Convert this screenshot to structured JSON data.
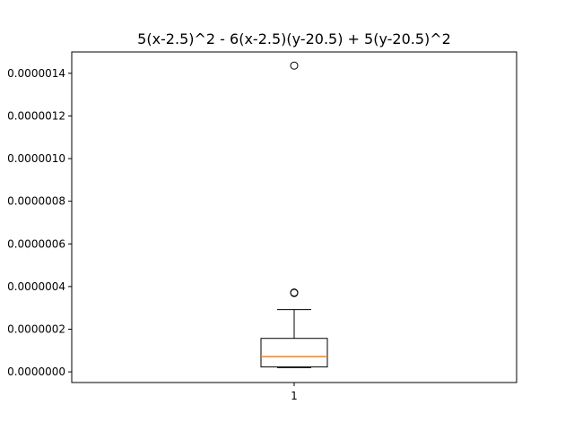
{
  "chart_data": {
    "type": "box",
    "title": "5(x-2.5)^2 - 6(x-2.5)(y-20.5) + 5(y-20.5)^2",
    "xlabel": "",
    "ylabel": "",
    "categories": [
      "1"
    ],
    "ylim": [
      -5e-08,
      1.5e-06
    ],
    "yticks": [
      0.0,
      2e-07,
      4e-07,
      6e-07,
      8e-07,
      1e-06,
      1.2e-06,
      1.4e-06
    ],
    "ytick_labels": [
      "0.0000000",
      "0.0000002",
      "0.0000004",
      "0.0000006",
      "0.0000008",
      "0.0000010",
      "0.0000012",
      "0.0000014"
    ],
    "boxes": [
      {
        "category": "1",
        "whisker_low": 2e-08,
        "q1": 2.3e-08,
        "median": 7.2e-08,
        "q3": 1.57e-07,
        "whisker_high": 2.92e-07,
        "outliers": [
          3.7e-07,
          3.72e-07,
          1.436e-06
        ]
      }
    ],
    "grid": false,
    "colors": {
      "box": "#000000",
      "median": "#ff7f0e",
      "outlier": "#000000"
    }
  }
}
